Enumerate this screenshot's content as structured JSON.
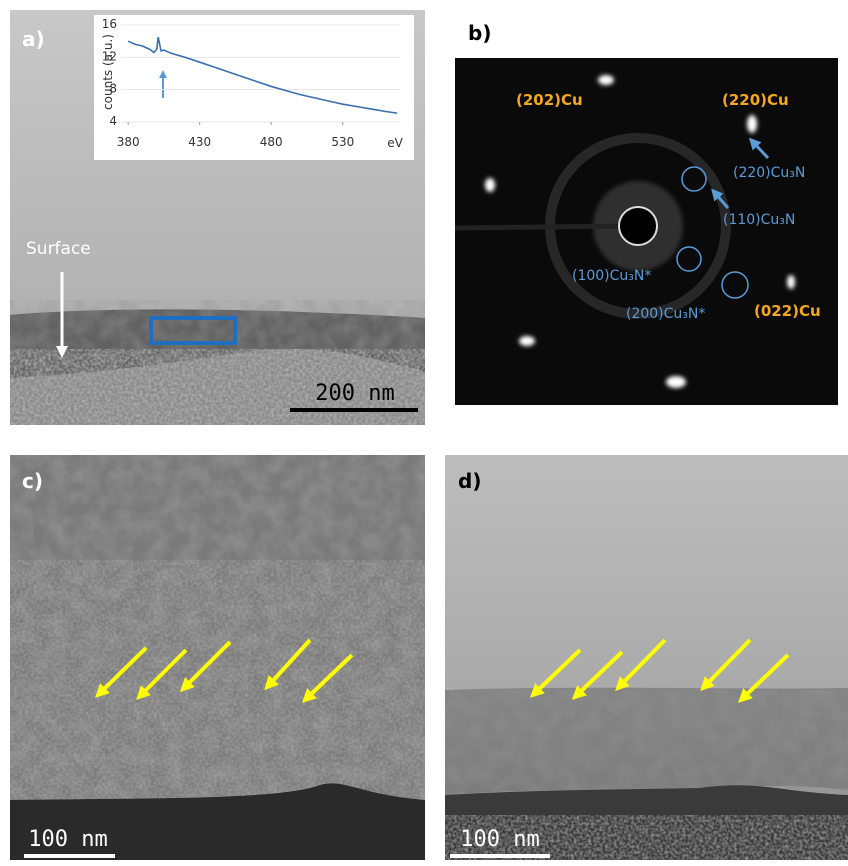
{
  "panels": [
    {
      "label": "a)",
      "annotation": "Surface",
      "scale_bar": "200 nm",
      "inset": {
        "type": "line",
        "y_label": "counts (a.u.)",
        "x_unit": "eV",
        "xlim": [
          375,
          570
        ],
        "ylim": [
          4,
          16
        ],
        "xticks": [
          380,
          430,
          480,
          530
        ],
        "yticks": [
          4,
          8,
          12,
          16
        ],
        "color": "#3a6fb0",
        "x": [
          380,
          385,
          390,
          395,
          398,
          400,
          401,
          403,
          405,
          410,
          420,
          430,
          440,
          450,
          460,
          470,
          480,
          490,
          500,
          510,
          520,
          530,
          540,
          550,
          560,
          568
        ],
        "values": [
          14,
          13.6,
          13.4,
          13,
          12.6,
          13,
          14.5,
          12.8,
          12.9,
          12.5,
          12,
          11.4,
          10.8,
          10.2,
          9.6,
          9,
          8.4,
          7.9,
          7.4,
          7,
          6.6,
          6.2,
          5.9,
          5.6,
          5.3,
          5.1
        ]
      }
    },
    {
      "label": "b)",
      "spots": [
        "(202)Cu",
        "(220)Cu",
        "(220)Cu₃N",
        "(110)Cu₃N",
        "(100)Cu₃N*",
        "(200)Cu₃N*",
        "(022)Cu"
      ]
    },
    {
      "label": "c)",
      "scale_bar": "100 nm"
    },
    {
      "label": "d)",
      "scale_bar": "100 nm"
    }
  ]
}
